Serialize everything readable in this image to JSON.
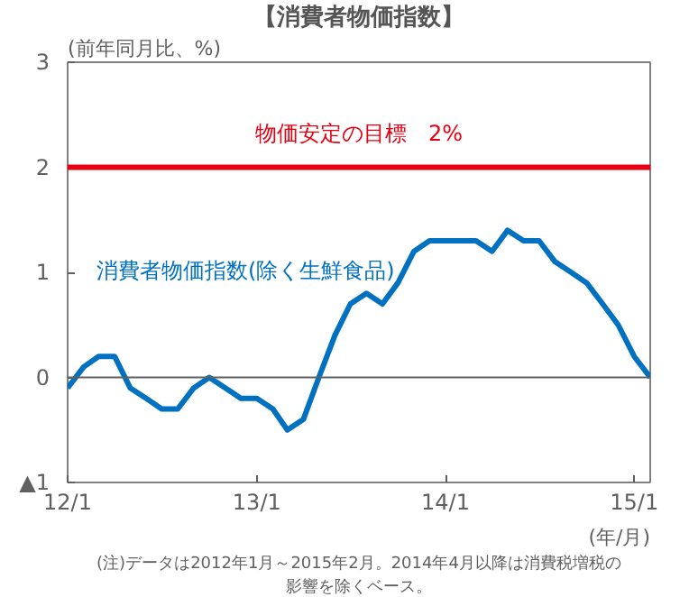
{
  "chart_data": {
    "type": "line",
    "title": "【消費者物価指数】",
    "ylabel": "(前年同月比、%)",
    "xlabel": "(年/月)",
    "x": [
      "2012-01",
      "2012-02",
      "2012-03",
      "2012-04",
      "2012-05",
      "2012-06",
      "2012-07",
      "2012-08",
      "2012-09",
      "2012-10",
      "2012-11",
      "2012-12",
      "2013-01",
      "2013-02",
      "2013-03",
      "2013-04",
      "2013-05",
      "2013-06",
      "2013-07",
      "2013-08",
      "2013-09",
      "2013-10",
      "2013-11",
      "2013-12",
      "2014-01",
      "2014-02",
      "2014-03",
      "2014-04",
      "2014-05",
      "2014-06",
      "2014-07",
      "2014-08",
      "2014-09",
      "2014-10",
      "2014-11",
      "2014-12",
      "2015-01",
      "2015-02"
    ],
    "series": [
      {
        "name": "消費者物価指数(除く生鮮食品)",
        "color": "#0070c0",
        "values": [
          -0.1,
          0.1,
          0.2,
          0.2,
          -0.1,
          -0.2,
          -0.3,
          -0.3,
          -0.1,
          0.0,
          -0.1,
          -0.2,
          -0.2,
          -0.3,
          -0.5,
          -0.4,
          0.0,
          0.4,
          0.7,
          0.8,
          0.7,
          0.9,
          1.2,
          1.3,
          1.3,
          1.3,
          1.3,
          1.2,
          1.4,
          1.3,
          1.3,
          1.1,
          1.0,
          0.9,
          0.7,
          0.5,
          0.2,
          0.0
        ]
      }
    ],
    "xlim": [
      "2012-01",
      "2015-02"
    ],
    "xticks": [
      {
        "value": "2012-01",
        "label": "12/1"
      },
      {
        "value": "2013-01",
        "label": "13/1"
      },
      {
        "value": "2014-01",
        "label": "14/1"
      },
      {
        "value": "2015-01",
        "label": "15/1"
      }
    ],
    "ylim": [
      -1,
      3
    ],
    "yticks": [
      {
        "value": -1,
        "label": "▲1"
      },
      0,
      1,
      2,
      3
    ],
    "ref_lines": [
      {
        "axis": "y",
        "value": 2,
        "label": "物価安定の目標　2%",
        "color": "#e60012"
      },
      {
        "axis": "y",
        "value": 0,
        "label": null,
        "color": "#606060"
      }
    ],
    "annotations": [
      "(注)データは2012年1月～2015年2月。2014年4月以降は消費税増税の",
      "影響を除くベース。"
    ],
    "grid": false
  }
}
